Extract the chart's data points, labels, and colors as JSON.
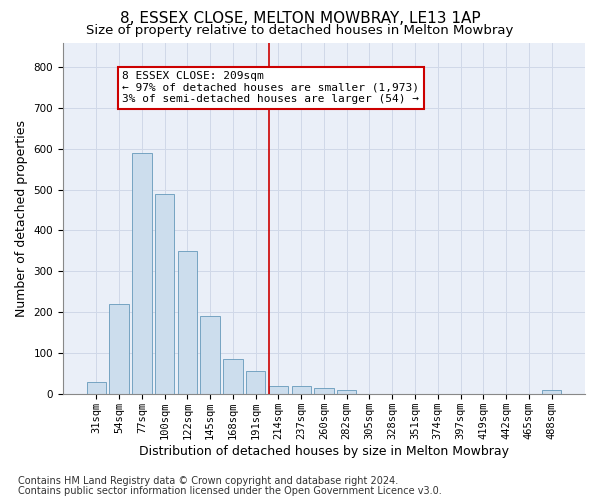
{
  "title": "8, ESSEX CLOSE, MELTON MOWBRAY, LE13 1AP",
  "subtitle": "Size of property relative to detached houses in Melton Mowbray",
  "xlabel": "Distribution of detached houses by size in Melton Mowbray",
  "ylabel": "Number of detached properties",
  "footnote1": "Contains HM Land Registry data © Crown copyright and database right 2024.",
  "footnote2": "Contains public sector information licensed under the Open Government Licence v3.0.",
  "bar_labels": [
    "31sqm",
    "54sqm",
    "77sqm",
    "100sqm",
    "122sqm",
    "145sqm",
    "168sqm",
    "191sqm",
    "214sqm",
    "237sqm",
    "260sqm",
    "282sqm",
    "305sqm",
    "328sqm",
    "351sqm",
    "374sqm",
    "397sqm",
    "419sqm",
    "442sqm",
    "465sqm",
    "488sqm"
  ],
  "bar_heights": [
    30,
    220,
    590,
    490,
    350,
    190,
    85,
    55,
    20,
    18,
    15,
    10,
    0,
    0,
    0,
    0,
    0,
    0,
    0,
    0,
    10
  ],
  "bar_color": "#ccdded",
  "bar_edge_color": "#6699bb",
  "grid_color": "#d0d8e8",
  "bg_color": "#eaeff8",
  "annotation_text": "8 ESSEX CLOSE: 209sqm\n← 97% of detached houses are smaller (1,973)\n3% of semi-detached houses are larger (54) →",
  "annotation_box_color": "#ffffff",
  "annotation_box_edge": "#cc0000",
  "vline_x": 7.57,
  "vline_color": "#cc0000",
  "ylim": [
    0,
    860
  ],
  "yticks": [
    0,
    100,
    200,
    300,
    400,
    500,
    600,
    700,
    800
  ],
  "title_fontsize": 11,
  "subtitle_fontsize": 9.5,
  "ylabel_fontsize": 9,
  "xlabel_fontsize": 9,
  "tick_fontsize": 7.5,
  "annotation_fontsize": 8,
  "footnote_fontsize": 7
}
